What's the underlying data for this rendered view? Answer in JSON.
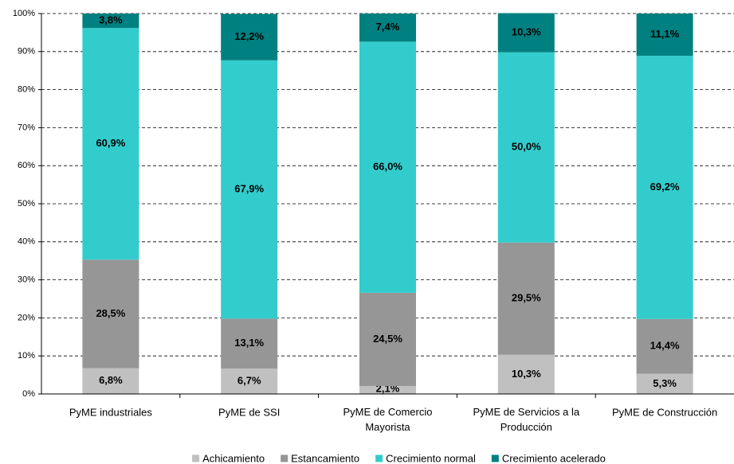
{
  "chart_data": {
    "type": "stacked-bar",
    "categories": [
      "PyME industriales",
      "PyME de SSI",
      "PyME de Comercio Mayorista",
      "PyME de Servicios a la Producción",
      "PyME de Construcción"
    ],
    "series": [
      {
        "name": "Achicamiento",
        "color": "#c0c0c0",
        "values": [
          6.8,
          6.7,
          2.1,
          10.3,
          5.3
        ],
        "value_labels": [
          "6,8%",
          "6,7%",
          "2,1%",
          "10,3%",
          "5,3%"
        ]
      },
      {
        "name": "Estancamiento",
        "color": "#969696",
        "values": [
          28.5,
          13.1,
          24.5,
          29.5,
          14.4
        ],
        "value_labels": [
          "28,5%",
          "13,1%",
          "24,5%",
          "29,5%",
          "14,4%"
        ]
      },
      {
        "name": "Crecimiento normal",
        "color": "#33cccc",
        "values": [
          60.9,
          67.9,
          66.0,
          50.0,
          69.2
        ],
        "value_labels": [
          "60,9%",
          "67,9%",
          "66,0%",
          "50,0%",
          "69,2%"
        ]
      },
      {
        "name": "Crecimiento acelerado",
        "color": "#008080",
        "values": [
          3.8,
          12.2,
          7.4,
          10.3,
          11.1
        ],
        "value_labels": [
          "3,8%",
          "12,2%",
          "7,4%",
          "10,3%",
          "11,1%"
        ]
      }
    ],
    "ylim": [
      0,
      100
    ],
    "yticks": [
      {
        "value": 0,
        "label": "0%"
      },
      {
        "value": 10,
        "label": "10%"
      },
      {
        "value": 20,
        "label": "20%"
      },
      {
        "value": 30,
        "label": "30%"
      },
      {
        "value": 40,
        "label": "40%"
      },
      {
        "value": 50,
        "label": "50%"
      },
      {
        "value": 60,
        "label": "60%"
      },
      {
        "value": 70,
        "label": "70%"
      },
      {
        "value": 80,
        "label": "80%"
      },
      {
        "value": 90,
        "label": "90%"
      },
      {
        "value": 100,
        "label": "100%"
      }
    ],
    "grid": true,
    "legend": "bottom"
  }
}
